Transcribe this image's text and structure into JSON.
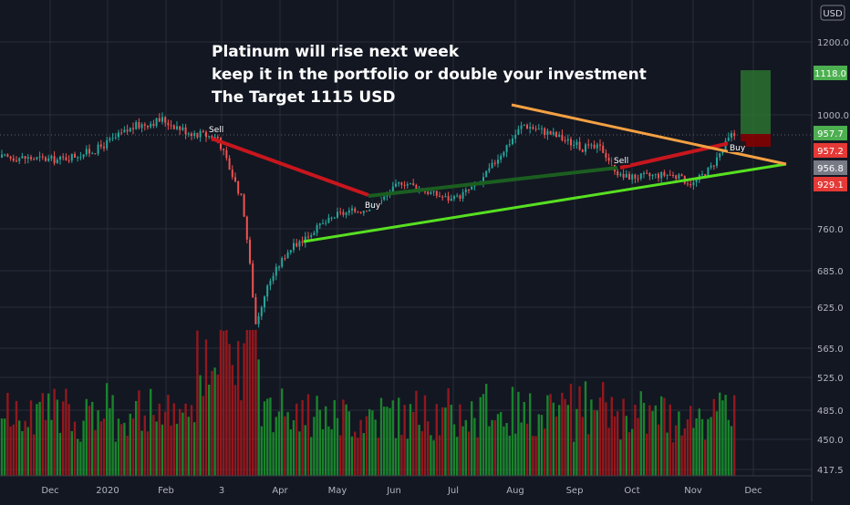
{
  "chart_data": {
    "type": "candlestick",
    "currency_label": "USD",
    "annotation_lines": [
      "Platinum will rise next week",
      "keep it in the portfolio or double your investment",
      "The Target 1115 USD"
    ],
    "x_labels": [
      "Dec",
      "2020",
      "Feb",
      "3",
      "Apr",
      "May",
      "Jun",
      "Jul",
      "Aug",
      "Sep",
      "Oct",
      "Nov",
      "Dec"
    ],
    "y_ticks": [
      "1200.0",
      "1000.0",
      "760.0",
      "685.0",
      "625.0",
      "565.0",
      "525.0",
      "485.0",
      "450.0",
      "417.5"
    ],
    "price_labels": [
      {
        "value": "1118.0",
        "color": "#4caf50"
      },
      {
        "value": "957.7",
        "color": "#4caf50"
      },
      {
        "value": "957.2",
        "color": "#e53935"
      },
      {
        "value": "956.8",
        "color": "#787b86"
      },
      {
        "value": "929.1",
        "color": "#e53935"
      }
    ],
    "signals": [
      {
        "label": "Sell"
      },
      {
        "label": "Buy"
      },
      {
        "label": "Sell"
      },
      {
        "label": "Buy"
      }
    ],
    "price_path": [
      [
        "2019-11-15",
        910
      ],
      [
        "2019-12-05",
        905
      ],
      [
        "2019-12-25",
        925
      ],
      [
        "2020-01-15",
        975
      ],
      [
        "2020-01-30",
        990
      ],
      [
        "2020-02-12",
        965
      ],
      [
        "2020-02-28",
        952
      ],
      [
        "2020-03-05",
        890
      ],
      [
        "2020-03-12",
        820
      ],
      [
        "2020-03-19",
        600
      ],
      [
        "2020-03-26",
        665
      ],
      [
        "2020-04-05",
        720
      ],
      [
        "2020-04-20",
        760
      ],
      [
        "2020-05-01",
        790
      ],
      [
        "2020-05-15",
        800
      ],
      [
        "2020-05-25",
        820
      ],
      [
        "2020-06-05",
        860
      ],
      [
        "2020-06-20",
        835
      ],
      [
        "2020-07-01",
        820
      ],
      [
        "2020-07-15",
        860
      ],
      [
        "2020-07-25",
        920
      ],
      [
        "2020-08-05",
        980
      ],
      [
        "2020-08-20",
        960
      ],
      [
        "2020-09-05",
        930
      ],
      [
        "2020-09-15",
        930
      ],
      [
        "2020-09-25",
        870
      ],
      [
        "2020-10-05",
        870
      ],
      [
        "2020-10-20",
        875
      ],
      [
        "2020-11-01",
        855
      ],
      [
        "2020-11-10",
        890
      ],
      [
        "2020-11-20",
        957
      ]
    ],
    "colors": {
      "up": "#26a69a",
      "down": "#ef5350",
      "bg": "#131722",
      "grid": "#2a2e39",
      "orange_line": "#f5a142",
      "green_line": "#57e021",
      "red_line": "#c8161d",
      "dark_green_line": "#1b5e20",
      "target_box": "#2e7d32",
      "stop_box": "#8b0000"
    },
    "grid": true
  }
}
